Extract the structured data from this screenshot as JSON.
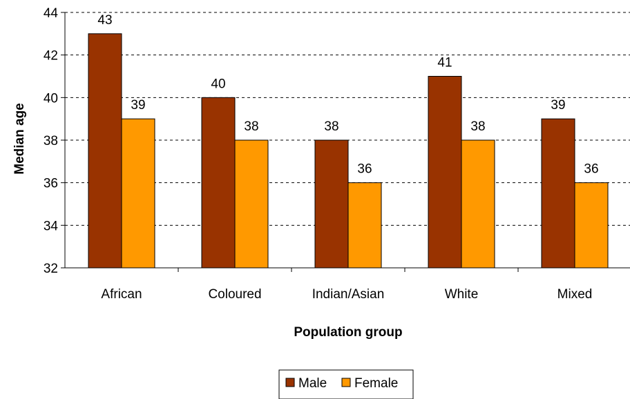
{
  "chart_data": {
    "type": "bar",
    "title": "",
    "xlabel": "Population group",
    "ylabel": "Median age",
    "categories": [
      "African",
      "Coloured",
      "Indian/Asian",
      "White",
      "Mixed"
    ],
    "series": [
      {
        "name": "Male",
        "values": [
          43,
          40,
          38,
          41,
          39
        ],
        "color": "#993300"
      },
      {
        "name": "Female",
        "values": [
          39,
          38,
          36,
          38,
          36
        ],
        "color": "#FF9900"
      }
    ],
    "ylim": [
      32,
      44
    ],
    "yticks": [
      32,
      34,
      36,
      38,
      40,
      42,
      44
    ],
    "grid": true,
    "legend_position": "bottom",
    "data_labels": true
  }
}
